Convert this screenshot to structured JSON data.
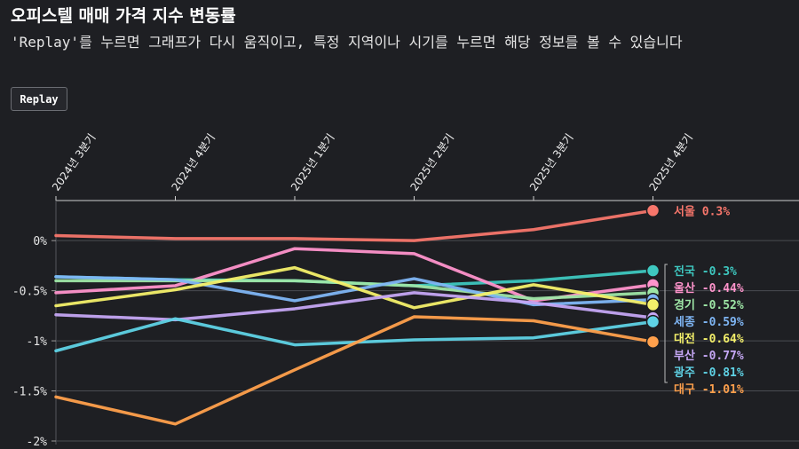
{
  "header": {
    "title": "오피스텔 매매 가격 지수 변동률",
    "subtitle": "'Replay'를 누르면 그래프가 다시 움직이고, 특정 지역이나 시기를 누르면 해당 정보를 볼 수 있습니다",
    "replay_label": "Replay"
  },
  "chart_data": {
    "type": "line",
    "title": "",
    "xlabel": "",
    "ylabel": "",
    "x": [
      "2024년 3분기",
      "2024년 4분기",
      "2025년 1분기",
      "2025년 2분기",
      "2025년 3분기",
      "2025년 4분기"
    ],
    "ylim": [
      -2,
      0.4
    ],
    "yticks": [
      0,
      -0.5,
      -1,
      -1.5,
      -2
    ],
    "ytick_labels": [
      "0%",
      "-0.5%",
      "-1%",
      "-1.5%",
      "-2%"
    ],
    "grid": true,
    "legend": "right-end labels",
    "series": [
      {
        "name": "서울",
        "value_label": "0.3%",
        "color": "#f7766b",
        "values": [
          0.05,
          0.02,
          0.02,
          0.0,
          0.11,
          0.3
        ]
      },
      {
        "name": "전국",
        "value_label": "-0.3%",
        "color": "#3ec8c0",
        "values": [
          -0.36,
          -0.39,
          -0.4,
          -0.45,
          -0.4,
          -0.3
        ]
      },
      {
        "name": "울산",
        "value_label": "-0.44%",
        "color": "#ff94cc",
        "values": [
          -0.52,
          -0.45,
          -0.08,
          -0.13,
          -0.6,
          -0.44
        ]
      },
      {
        "name": "경기",
        "value_label": "-0.52%",
        "color": "#9ee6a6",
        "values": [
          -0.4,
          -0.4,
          -0.4,
          -0.45,
          -0.58,
          -0.52
        ]
      },
      {
        "name": "세종",
        "value_label": "-0.59%",
        "color": "#7fb6f5",
        "values": [
          -0.36,
          -0.39,
          -0.6,
          -0.38,
          -0.64,
          -0.59
        ]
      },
      {
        "name": "대전",
        "value_label": "-0.64%",
        "color": "#f4f06a",
        "values": [
          -0.65,
          -0.49,
          -0.27,
          -0.67,
          -0.44,
          -0.64
        ]
      },
      {
        "name": "부산",
        "value_label": "-0.77%",
        "color": "#c5a7f4",
        "values": [
          -0.74,
          -0.79,
          -0.68,
          -0.52,
          -0.62,
          -0.77
        ]
      },
      {
        "name": "광주",
        "value_label": "-0.81%",
        "color": "#5fd3e6",
        "values": [
          -1.1,
          -0.78,
          -1.04,
          -0.99,
          -0.97,
          -0.81
        ]
      },
      {
        "name": "대구",
        "value_label": "-1.01%",
        "color": "#ffa04c",
        "values": [
          -1.56,
          -1.83,
          -1.29,
          -0.76,
          -0.8,
          -1.01
        ]
      }
    ]
  }
}
